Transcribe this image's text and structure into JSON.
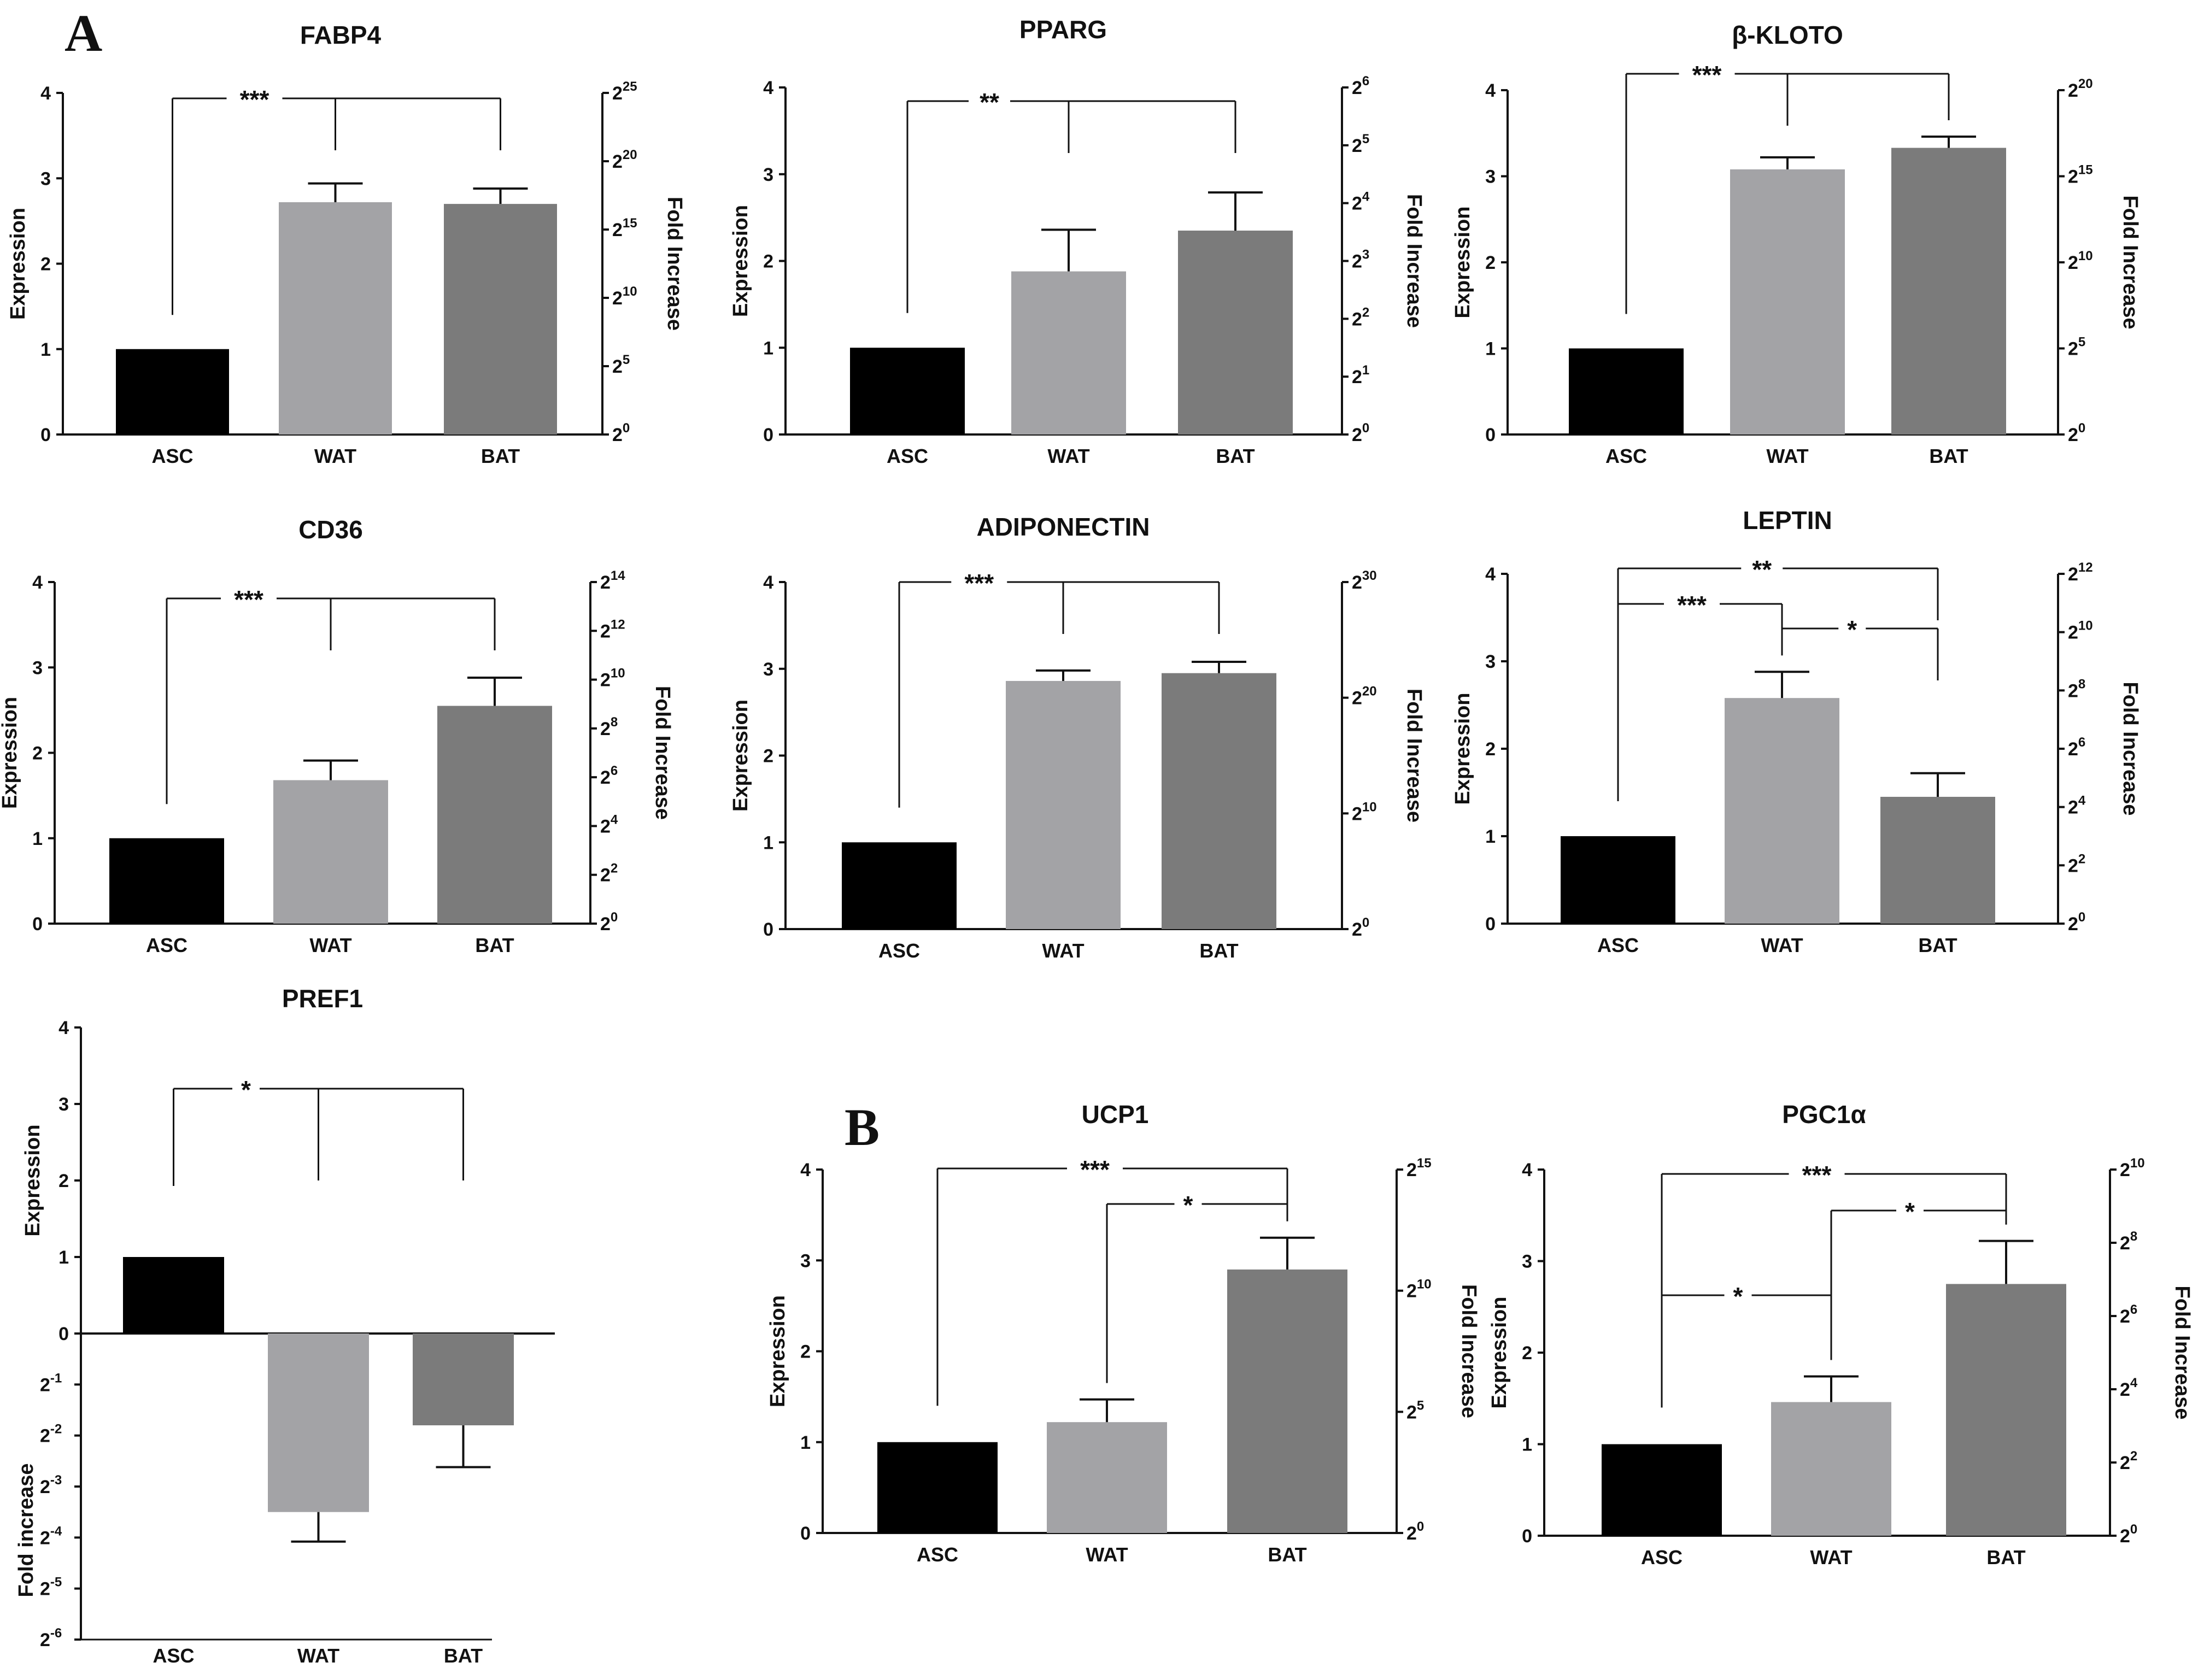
{
  "panel_labels": [
    "A",
    "B"
  ],
  "chart_data": [
    {
      "type": "bar",
      "title": "FABP4",
      "categories": [
        "ASC",
        "WAT",
        "BAT"
      ],
      "values": [
        1.0,
        2.72,
        2.7
      ],
      "errors": [
        0,
        0.22,
        0.18
      ],
      "ylabel": "Expression",
      "ylim": [
        0,
        4
      ],
      "yticks": [
        0,
        1,
        2,
        3,
        4
      ],
      "y2label": "Fold Increase",
      "y2ticks": [
        {
          "base": "2",
          "exp": "0"
        },
        {
          "base": "2",
          "exp": "5"
        },
        {
          "base": "2",
          "exp": "10"
        },
        {
          "base": "2",
          "exp": "15"
        },
        {
          "base": "2",
          "exp": "20"
        },
        {
          "base": "2",
          "exp": "25"
        }
      ],
      "significance": [
        {
          "from": "ASC",
          "to": [
            "WAT",
            "BAT"
          ],
          "label": "***"
        }
      ]
    },
    {
      "type": "bar",
      "title": "PPARG",
      "categories": [
        "ASC",
        "WAT",
        "BAT"
      ],
      "values": [
        1.0,
        1.88,
        2.35
      ],
      "errors": [
        0,
        0.48,
        0.44
      ],
      "ylabel": "Expression",
      "ylim": [
        0,
        4
      ],
      "yticks": [
        0,
        1,
        2,
        3,
        4
      ],
      "y2label": "Fold Increase",
      "y2ticks": [
        {
          "base": "2",
          "exp": "0"
        },
        {
          "base": "2",
          "exp": "1"
        },
        {
          "base": "2",
          "exp": "2"
        },
        {
          "base": "2",
          "exp": "3"
        },
        {
          "base": "2",
          "exp": "4"
        },
        {
          "base": "2",
          "exp": "5"
        },
        {
          "base": "2",
          "exp": "6"
        }
      ],
      "significance": [
        {
          "from": "ASC",
          "to": [
            "WAT",
            "BAT"
          ],
          "label": "**"
        }
      ]
    },
    {
      "type": "bar",
      "title": "β-KLOTO",
      "categories": [
        "ASC",
        "WAT",
        "BAT"
      ],
      "values": [
        1.0,
        3.08,
        3.33
      ],
      "errors": [
        0,
        0.14,
        0.13
      ],
      "ylabel": "Expression",
      "ylim": [
        0,
        4
      ],
      "yticks": [
        0,
        1,
        2,
        3,
        4
      ],
      "y2label": "Fold Increase",
      "y2ticks": [
        {
          "base": "2",
          "exp": "0"
        },
        {
          "base": "2",
          "exp": "5"
        },
        {
          "base": "2",
          "exp": "10"
        },
        {
          "base": "2",
          "exp": "15"
        },
        {
          "base": "2",
          "exp": "20"
        }
      ],
      "significance": [
        {
          "from": "ASC",
          "to": [
            "WAT",
            "BAT"
          ],
          "label": "***"
        }
      ]
    },
    {
      "type": "bar",
      "title": "CD36",
      "categories": [
        "ASC",
        "WAT",
        "BAT"
      ],
      "values": [
        1.0,
        1.68,
        2.55
      ],
      "errors": [
        0,
        0.23,
        0.33
      ],
      "ylabel": "Expression",
      "ylim": [
        0,
        4
      ],
      "yticks": [
        0,
        1,
        2,
        3,
        4
      ],
      "y2label": "Fold Increase",
      "y2ticks": [
        {
          "base": "2",
          "exp": "0"
        },
        {
          "base": "2",
          "exp": "2"
        },
        {
          "base": "2",
          "exp": "4"
        },
        {
          "base": "2",
          "exp": "6"
        },
        {
          "base": "2",
          "exp": "8"
        },
        {
          "base": "2",
          "exp": "10"
        },
        {
          "base": "2",
          "exp": "12"
        },
        {
          "base": "2",
          "exp": "14"
        }
      ],
      "significance": [
        {
          "from": "ASC",
          "to": [
            "WAT",
            "BAT"
          ],
          "label": "***"
        }
      ]
    },
    {
      "type": "bar",
      "title": "ADIPONECTIN",
      "categories": [
        "ASC",
        "WAT",
        "BAT"
      ],
      "values": [
        1.0,
        2.86,
        2.95
      ],
      "errors": [
        0,
        0.12,
        0.13
      ],
      "ylabel": "Expression",
      "ylim": [
        0,
        4
      ],
      "yticks": [
        0,
        1,
        2,
        3,
        4
      ],
      "y2label": "Fold Increase",
      "y2ticks": [
        {
          "base": "2",
          "exp": "0"
        },
        {
          "base": "2",
          "exp": "10"
        },
        {
          "base": "2",
          "exp": "20"
        },
        {
          "base": "2",
          "exp": "30"
        }
      ],
      "significance": [
        {
          "from": "ASC",
          "to": [
            "WAT",
            "BAT"
          ],
          "label": "***"
        }
      ]
    },
    {
      "type": "bar",
      "title": "LEPTIN",
      "categories": [
        "ASC",
        "WAT",
        "BAT"
      ],
      "values": [
        1.0,
        2.58,
        1.45
      ],
      "errors": [
        0,
        0.3,
        0.27
      ],
      "ylabel": "Expression",
      "ylim": [
        0,
        4
      ],
      "yticks": [
        0,
        1,
        2,
        3,
        4
      ],
      "y2label": "Fold Increase",
      "y2ticks": [
        {
          "base": "2",
          "exp": "0"
        },
        {
          "base": "2",
          "exp": "2"
        },
        {
          "base": "2",
          "exp": "4"
        },
        {
          "base": "2",
          "exp": "6"
        },
        {
          "base": "2",
          "exp": "8"
        },
        {
          "base": "2",
          "exp": "10"
        },
        {
          "base": "2",
          "exp": "12"
        }
      ],
      "significance": [
        {
          "from": "ASC",
          "to": [
            "BAT"
          ],
          "label": "**"
        },
        {
          "from": "ASC",
          "to": [
            "WAT"
          ],
          "label": "***"
        },
        {
          "from": "WAT",
          "to": [
            "BAT"
          ],
          "label": "*"
        }
      ]
    },
    {
      "type": "bar",
      "title": "PREF1",
      "categories": [
        "ASC",
        "WAT",
        "BAT"
      ],
      "values": [
        1.0,
        -3.5,
        -1.8
      ],
      "errors": [
        0,
        0.58,
        0.82
      ],
      "ylabel": "Expression",
      "yticks": [
        0,
        1,
        2,
        3,
        4
      ],
      "y2label": "Fold increase",
      "negative_ticks": [
        {
          "base": "2",
          "exp": "-1"
        },
        {
          "base": "2",
          "exp": "-2"
        },
        {
          "base": "2",
          "exp": "-3"
        },
        {
          "base": "2",
          "exp": "-4"
        },
        {
          "base": "2",
          "exp": "-5"
        },
        {
          "base": "2",
          "exp": "-6"
        }
      ],
      "significance": [
        {
          "from": "ASC",
          "to": [
            "WAT",
            "BAT"
          ],
          "label": "*"
        }
      ]
    },
    {
      "type": "bar",
      "title": "UCP1",
      "categories": [
        "ASC",
        "WAT",
        "BAT"
      ],
      "values": [
        1.0,
        1.22,
        2.9
      ],
      "errors": [
        0,
        0.25,
        0.35
      ],
      "ylabel": "Expression",
      "ylim": [
        0,
        4
      ],
      "yticks": [
        0,
        1,
        2,
        3,
        4
      ],
      "y2label": "Fold Increase",
      "y2ticks": [
        {
          "base": "2",
          "exp": "0"
        },
        {
          "base": "2",
          "exp": "5"
        },
        {
          "base": "2",
          "exp": "10"
        },
        {
          "base": "2",
          "exp": "15"
        }
      ],
      "significance": [
        {
          "from": "ASC",
          "to": [
            "BAT"
          ],
          "label": "***"
        },
        {
          "from": "WAT",
          "to": [
            "BAT"
          ],
          "label": "*"
        }
      ]
    },
    {
      "type": "bar",
      "title": "PGC1α",
      "categories": [
        "ASC",
        "WAT",
        "BAT"
      ],
      "values": [
        1.0,
        1.46,
        2.75
      ],
      "errors": [
        0,
        0.28,
        0.47
      ],
      "ylabel": "Expression",
      "ylim": [
        0,
        4
      ],
      "yticks": [
        0,
        1,
        2,
        3,
        4
      ],
      "y2label": "Fold Increase",
      "y2ticks": [
        {
          "base": "2",
          "exp": "0"
        },
        {
          "base": "2",
          "exp": "2"
        },
        {
          "base": "2",
          "exp": "4"
        },
        {
          "base": "2",
          "exp": "6"
        },
        {
          "base": "2",
          "exp": "8"
        },
        {
          "base": "2",
          "exp": "10"
        }
      ],
      "significance": [
        {
          "from": "ASC",
          "to": [
            "BAT"
          ],
          "label": "***"
        },
        {
          "from": "WAT",
          "to": [
            "BAT"
          ],
          "label": "*"
        },
        {
          "from": "ASC",
          "to": [
            "WAT"
          ],
          "label": "*"
        }
      ]
    }
  ],
  "colors": {
    "ASC": "#000000",
    "WAT": "#a3a3a6",
    "BAT": "#7b7b7b",
    "axis": "#111111"
  }
}
